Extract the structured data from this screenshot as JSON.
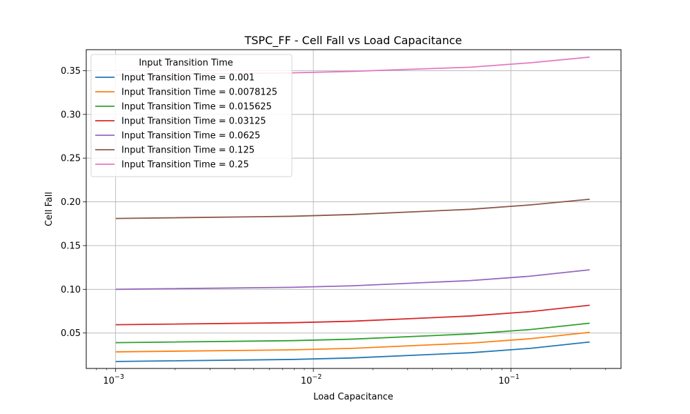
{
  "chart_data": {
    "type": "line",
    "title": "TSPC_FF - Cell Fall vs Load Capacitance",
    "xlabel": "Load Capacitance",
    "ylabel": "Cell Fall",
    "x_scale": "log",
    "xlim": [
      0.00071,
      0.36
    ],
    "ylim": [
      0.0095,
      0.374
    ],
    "x_ticks": [
      {
        "value": 0.001,
        "label": "10^-3"
      },
      {
        "value": 0.01,
        "label": "10^-2"
      },
      {
        "value": 0.1,
        "label": "10^-1"
      }
    ],
    "y_ticks": [
      {
        "value": 0.05,
        "label": "0.05"
      },
      {
        "value": 0.1,
        "label": "0.10"
      },
      {
        "value": 0.15,
        "label": "0.15"
      },
      {
        "value": 0.2,
        "label": "0.20"
      },
      {
        "value": 0.25,
        "label": "0.25"
      },
      {
        "value": 0.3,
        "label": "0.30"
      },
      {
        "value": 0.35,
        "label": "0.35"
      }
    ],
    "grid": true,
    "legend_title": "Input Transition Time",
    "legend_position": "upper-left",
    "x": [
      0.001,
      0.0078125,
      0.015625,
      0.0625,
      0.125,
      0.25
    ],
    "series": [
      {
        "name": "Input Transition Time = 0.001",
        "color": "#1f77b4",
        "values": [
          0.0175,
          0.0198,
          0.0215,
          0.0275,
          0.0325,
          0.0398
        ]
      },
      {
        "name": "Input Transition Time = 0.0078125",
        "color": "#ff7f0e",
        "values": [
          0.0285,
          0.0308,
          0.0325,
          0.0385,
          0.0435,
          0.0508
        ]
      },
      {
        "name": "Input Transition Time = 0.015625",
        "color": "#2ca02c",
        "values": [
          0.039,
          0.0413,
          0.043,
          0.049,
          0.054,
          0.0613
        ]
      },
      {
        "name": "Input Transition Time = 0.03125",
        "color": "#d62728",
        "values": [
          0.0595,
          0.0618,
          0.0635,
          0.0695,
          0.0745,
          0.0818
        ]
      },
      {
        "name": "Input Transition Time = 0.0625",
        "color": "#9467bd",
        "values": [
          0.1,
          0.1023,
          0.104,
          0.11,
          0.115,
          0.1223
        ]
      },
      {
        "name": "Input Transition Time = 0.125",
        "color": "#8c564b",
        "values": [
          0.181,
          0.1835,
          0.1855,
          0.1915,
          0.1965,
          0.203
        ]
      },
      {
        "name": "Input Transition Time = 0.25",
        "color": "#e377c2",
        "values": [
          0.345,
          0.3475,
          0.3492,
          0.354,
          0.359,
          0.3655
        ]
      }
    ]
  }
}
